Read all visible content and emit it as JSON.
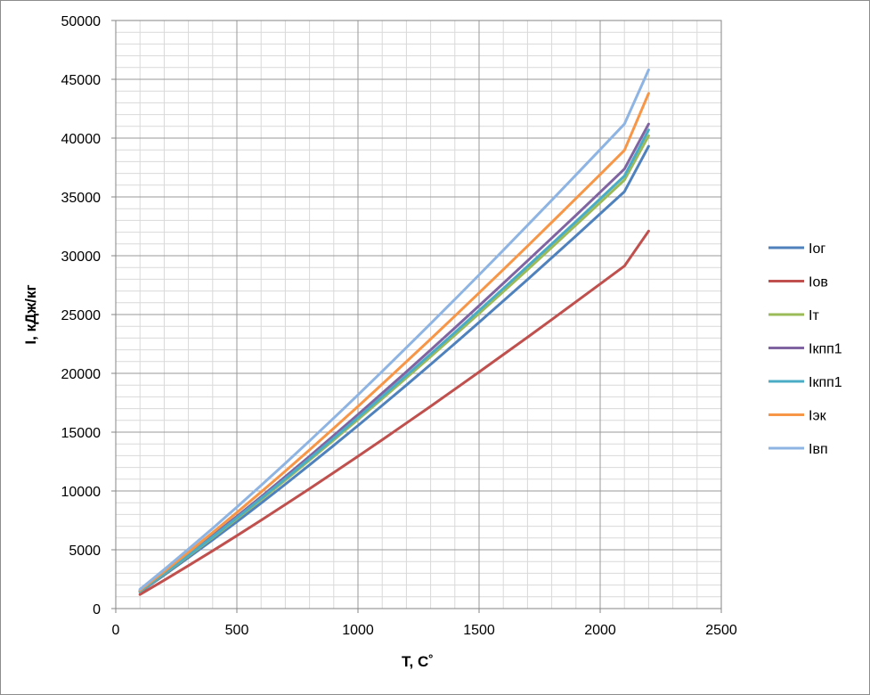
{
  "chart_data": {
    "type": "line",
    "xlabel": "T, C˚",
    "ylabel": "I, кДж/кг",
    "xlim": [
      0,
      2500
    ],
    "ylim": [
      0,
      50000
    ],
    "x_ticks": [
      "0",
      "500",
      "1000",
      "1500",
      "2000",
      "2500"
    ],
    "y_ticks": [
      "0",
      "5000",
      "10000",
      "15000",
      "20000",
      "25000",
      "30000",
      "35000",
      "40000",
      "45000",
      "50000"
    ],
    "grid": true,
    "legend_position": "right",
    "x": [
      100,
      200,
      300,
      400,
      500,
      600,
      700,
      800,
      900,
      1000,
      1100,
      1200,
      1300,
      1400,
      1500,
      1600,
      1700,
      1800,
      1900,
      2000,
      2100,
      2200
    ],
    "series": [
      {
        "name": "Iог",
        "color": "#4f81bd",
        "values": [
          1400,
          2850,
          4330,
          5840,
          7380,
          8960,
          10570,
          12210,
          13870,
          15560,
          17270,
          19000,
          20760,
          22540,
          24330,
          26150,
          27980,
          29830,
          31680,
          33570,
          35450,
          39300
        ]
      },
      {
        "name": "Iов",
        "color": "#c0504d",
        "values": [
          1200,
          2410,
          3650,
          4910,
          6200,
          7510,
          8840,
          10190,
          11560,
          12950,
          14350,
          15770,
          17200,
          18650,
          20110,
          21590,
          23070,
          24570,
          26080,
          27600,
          29120,
          32100
        ]
      },
      {
        "name": "Iт",
        "color": "#9bbb59",
        "values": [
          1450,
          2940,
          4470,
          6030,
          7630,
          9260,
          10920,
          12610,
          14330,
          16070,
          17840,
          19620,
          21420,
          23250,
          25090,
          26950,
          28820,
          30710,
          32610,
          34520,
          36440,
          40200
        ]
      },
      {
        "name": "Iкпп1",
        "color": "#8064a2",
        "values": [
          1500,
          3030,
          4600,
          6200,
          7840,
          9510,
          11220,
          12950,
          14710,
          16500,
          18310,
          20140,
          21990,
          23860,
          25750,
          27650,
          29570,
          31500,
          33440,
          35400,
          37370,
          41200
        ]
      },
      {
        "name": "Iкпп1",
        "color": "#4bacc6",
        "values": [
          1470,
          2980,
          4520,
          6100,
          7710,
          9360,
          11040,
          12740,
          14480,
          16240,
          18020,
          19820,
          21640,
          23480,
          25340,
          27210,
          29100,
          31000,
          32910,
          34840,
          36780,
          40700
        ]
      },
      {
        "name": "Iэк",
        "color": "#f79646",
        "values": [
          1550,
          3150,
          4790,
          6460,
          8170,
          9910,
          11690,
          13490,
          15330,
          17190,
          19080,
          20990,
          22920,
          24870,
          26840,
          28820,
          30820,
          32840,
          34870,
          36910,
          38960,
          43800
        ]
      },
      {
        "name": "Iвп",
        "color": "#8eb4e3",
        "values": [
          1640,
          3320,
          5050,
          6820,
          8630,
          10470,
          12350,
          14260,
          16200,
          18170,
          20170,
          22190,
          24230,
          26290,
          28370,
          30470,
          32590,
          34720,
          36870,
          39030,
          41200,
          45800
        ]
      }
    ]
  }
}
